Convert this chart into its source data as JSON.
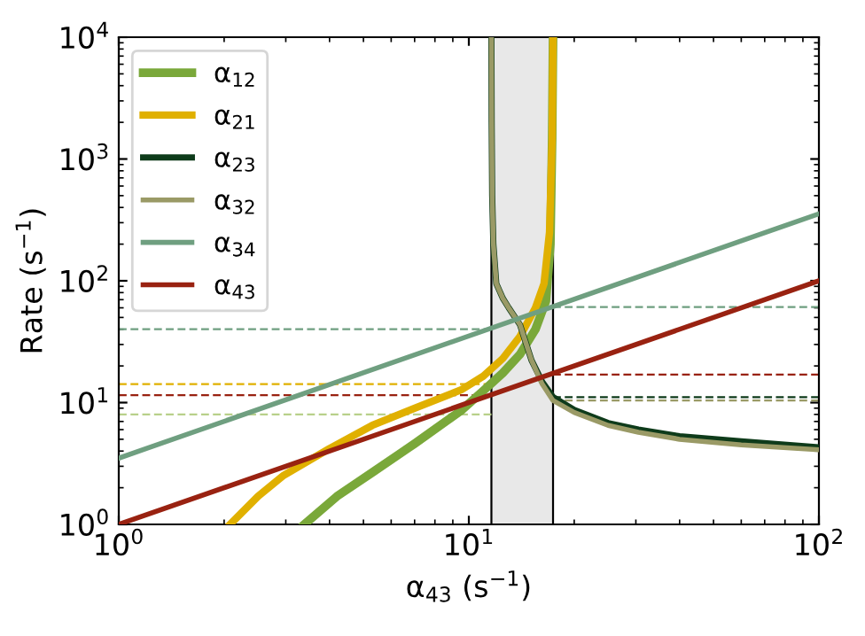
{
  "chart_data": {
    "type": "line",
    "xlabel": "α$_{43}$ (s$^{−1}$)",
    "ylabel": "Rate (s$^{−1}$)",
    "log": "xy",
    "grid": false,
    "legend": "top left",
    "line_style": "solid",
    "marker": "none",
    "xlim": [
      1,
      100
    ],
    "ylim": [
      1,
      10000
    ],
    "xticks": [
      {
        "value": 1,
        "label": "10$^{0}$"
      },
      {
        "value": 10,
        "label": "10$^{1}$"
      },
      {
        "value": 100,
        "label": "10$^{2}$"
      }
    ],
    "yticks": [
      {
        "value": 1,
        "label": "10$^{0}$"
      },
      {
        "value": 10,
        "label": "10$^{1}$"
      },
      {
        "value": 100,
        "label": "10$^{2}$"
      },
      {
        "value": 1000,
        "label": "10$^{3}$"
      },
      {
        "value": 10000,
        "label": "10$^{4}$"
      }
    ],
    "bands": [
      {
        "axis": "x",
        "from": 11.6,
        "to": 17.4,
        "color": "#e8e8e8"
      }
    ],
    "ref_lines": [
      {
        "axis": "x",
        "value": 11.6,
        "color": "#000000"
      },
      {
        "axis": "x",
        "value": 17.4,
        "color": "#000000"
      }
    ],
    "series": [
      {
        "name": "α$_{12}$",
        "color": "#7aa83a",
        "x": [
          3.39,
          4.2,
          5.3,
          7,
          9.5,
          11,
          12.5,
          14,
          15.5,
          16.6,
          17.1,
          17.3,
          17.4
        ],
        "values": [
          1,
          1.7,
          2.67,
          4.6,
          8.6,
          12.5,
          17.5,
          24.9,
          40,
          68,
          200,
          1500,
          10000
        ]
      },
      {
        "name": "α$_{21}$",
        "color": "#e0b000",
        "x": [
          2.08,
          2.5,
          2.96,
          4,
          5.3,
          7,
          9.5,
          11,
          12.5,
          14,
          15.5,
          16.4,
          17,
          17.3,
          17.4
        ],
        "values": [
          1,
          1.7,
          2.53,
          4.2,
          6.5,
          9,
          12.7,
          16.5,
          23,
          35,
          60,
          95,
          250,
          1500,
          10000
        ]
      },
      {
        "name": "α$_{23}$",
        "color": "#0e3b1a",
        "x": [
          11.6,
          11.62,
          11.66,
          11.75,
          11.98,
          12.5,
          13,
          14,
          15.1,
          16.2,
          17.4,
          20,
          25,
          30.5,
          40,
          60,
          100
        ],
        "values": [
          10000,
          2000,
          500,
          200,
          95,
          72,
          60,
          43.6,
          22.3,
          14.8,
          11.1,
          8.7,
          6.8,
          6,
          5.3,
          4.8,
          4.3
        ]
      },
      {
        "name": "α$_{32}$",
        "color": "#9a9a66",
        "x": [
          11.6,
          11.62,
          11.66,
          11.75,
          11.98,
          12.5,
          13,
          14,
          15.1,
          16.2,
          17.4,
          20,
          25,
          30.5,
          40,
          60,
          100
        ],
        "values": [
          10000,
          2000,
          500,
          200,
          95,
          72,
          60,
          43.6,
          22.3,
          14.2,
          10.4,
          8.3,
          6.5,
          5.7,
          5.0,
          4.5,
          4.1
        ]
      },
      {
        "name": "α$_{34}$",
        "color": "#6f9f80",
        "x": [
          1,
          100
        ],
        "values": [
          3.5,
          355
        ]
      },
      {
        "name": "α$_{43}$",
        "color": "#992211",
        "x": [
          1,
          100
        ],
        "values": [
          1,
          100
        ]
      },
      {
        "color": "#6f9f80",
        "line_style": "dashed",
        "x": [
          1,
          11.6
        ],
        "values": [
          40,
          40
        ]
      },
      {
        "color": "#e0b000",
        "line_style": "dashed",
        "x": [
          1,
          11.6
        ],
        "values": [
          14.2,
          14.2
        ]
      },
      {
        "color": "#992211",
        "line_style": "dashed",
        "x": [
          1,
          11.6
        ],
        "values": [
          11.5,
          11.5
        ]
      },
      {
        "color": "#b8d08a",
        "line_style": "dashed",
        "x": [
          1,
          11.6
        ],
        "values": [
          8,
          8
        ]
      },
      {
        "color": "#6f9f80",
        "line_style": "dashed",
        "x": [
          17.4,
          100
        ],
        "values": [
          61,
          61
        ]
      },
      {
        "color": "#992211",
        "line_style": "dashed",
        "x": [
          17.4,
          100
        ],
        "values": [
          17,
          17
        ]
      },
      {
        "color": "#0e3b1a",
        "line_style": "dashed",
        "x": [
          17.4,
          100
        ],
        "values": [
          11.1,
          11.1
        ]
      },
      {
        "color": "#9a9a66",
        "line_style": "dashed",
        "x": [
          17.4,
          100
        ],
        "values": [
          10.4,
          10.4
        ]
      }
    ]
  }
}
